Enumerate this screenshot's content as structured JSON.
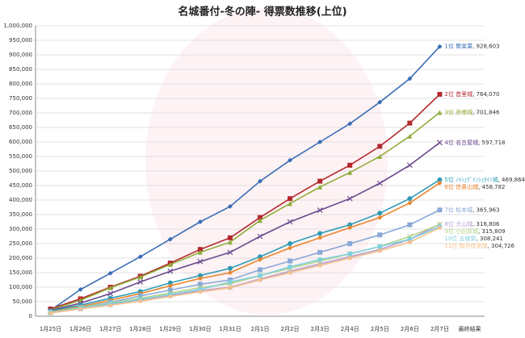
{
  "chart_data": {
    "type": "line",
    "title": "名城番付-冬の陣-  得票数推移(上位)",
    "categories": [
      "1月25日",
      "1月26日",
      "1月27日",
      "1月28日",
      "1月29日",
      "1月30日",
      "1月31日",
      "2月1日",
      "2月2日",
      "2月3日",
      "2月4日",
      "2月5日",
      "2月6日",
      "2月7日",
      "最終結果"
    ],
    "ylim": [
      0,
      1000000
    ],
    "yticks": [
      0,
      {
        "value": 50000,
        "label": "50,000"
      },
      {
        "value": 100000,
        "label": "100,000"
      },
      {
        "value": 150000,
        "label": "150,000"
      },
      {
        "value": 200000,
        "label": "200,000"
      },
      {
        "value": 250000,
        "label": "250,000"
      },
      {
        "value": 300000,
        "label": "300,000"
      },
      {
        "value": 350000,
        "label": "350,000"
      },
      {
        "value": 400000,
        "label": "400,000"
      },
      {
        "value": 450000,
        "label": "450,000"
      },
      {
        "value": 500000,
        "label": "500,000"
      },
      {
        "value": 550000,
        "label": "550,000"
      },
      {
        "value": 600000,
        "label": "600,000"
      },
      {
        "value": 650000,
        "label": "650,000"
      },
      {
        "value": 700000,
        "label": "700,000"
      },
      {
        "value": 750000,
        "label": "750,000"
      },
      {
        "value": 800000,
        "label": "800,000"
      },
      {
        "value": 850000,
        "label": "850,000"
      },
      {
        "value": 900000,
        "label": "900,000"
      },
      {
        "value": 950000,
        "label": "950,000"
      },
      {
        "value": 1000000,
        "label": "1,000,000"
      }
    ],
    "grid": true,
    "series": [
      {
        "name": "1位 聚楽第",
        "color": "#3a6eb5",
        "values": [
          20000,
          92000,
          148000,
          205000,
          265000,
          325000,
          378000,
          465000,
          537000,
          600000,
          663000,
          737000,
          818000,
          928603,
          null
        ],
        "value_labels": [
          null,
          null,
          null,
          null,
          null,
          null,
          null,
          null,
          null,
          null,
          null,
          null,
          null,
          "928,603",
          null
        ]
      },
      {
        "name": "2位 首里城",
        "color": "#b3282d",
        "values": [
          25000,
          60000,
          100000,
          138000,
          183000,
          230000,
          270000,
          340000,
          405000,
          465000,
          520000,
          585000,
          665000,
          764070,
          null
        ],
        "value_labels": [
          null,
          null,
          null,
          null,
          null,
          null,
          null,
          null,
          null,
          null,
          null,
          null,
          null,
          "764,070",
          null
        ]
      },
      {
        "name": "3位 彦根城",
        "color": "#8fae3a",
        "values": [
          22000,
          55000,
          98000,
          135000,
          178000,
          220000,
          255000,
          330000,
          388000,
          445000,
          495000,
          550000,
          620000,
          701846,
          null
        ],
        "value_labels": [
          null,
          null,
          null,
          null,
          null,
          null,
          null,
          null,
          null,
          null,
          null,
          null,
          null,
          "701,846",
          null
        ]
      },
      {
        "name": "4位 名古屋城",
        "color": "#6a4a8f",
        "values": [
          20000,
          45000,
          78000,
          118000,
          155000,
          188000,
          220000,
          275000,
          325000,
          365000,
          405000,
          458000,
          520000,
          597718,
          null
        ],
        "value_labels": [
          null,
          null,
          null,
          null,
          null,
          null,
          null,
          null,
          null,
          null,
          null,
          null,
          null,
          "597,718",
          null
        ]
      },
      {
        "name": "5位 ﾉｲｼｭｳﾞｧﾝｼｭﾀｲﾝ城",
        "color": "#2e9bb5",
        "values": [
          18000,
          38000,
          62000,
          85000,
          115000,
          140000,
          165000,
          205000,
          250000,
          285000,
          315000,
          355000,
          405000,
          469864,
          null
        ],
        "value_labels": [
          null,
          null,
          null,
          null,
          null,
          null,
          null,
          null,
          null,
          null,
          null,
          null,
          null,
          "469,864",
          null
        ]
      },
      {
        "name": "6位 信貴山城",
        "color": "#e8862e",
        "values": [
          15000,
          33000,
          55000,
          78000,
          105000,
          130000,
          150000,
          195000,
          235000,
          270000,
          305000,
          340000,
          390000,
          458782,
          null
        ],
        "value_labels": [
          null,
          null,
          null,
          null,
          null,
          null,
          null,
          null,
          null,
          null,
          null,
          null,
          null,
          "458,782",
          null
        ]
      },
      {
        "name": "7位 松本城",
        "color": "#8aa8d8",
        "values": [
          14000,
          30000,
          48000,
          70000,
          90000,
          110000,
          125000,
          160000,
          190000,
          220000,
          250000,
          280000,
          315000,
          365963,
          null
        ],
        "value_labels": [
          null,
          null,
          null,
          null,
          null,
          null,
          null,
          null,
          null,
          null,
          null,
          null,
          null,
          "365,963",
          null
        ]
      },
      {
        "name": "8位 犬山城",
        "color": "#b9a0d0",
        "values": [
          12000,
          26000,
          40000,
          56000,
          72000,
          88000,
          100000,
          128000,
          155000,
          180000,
          205000,
          230000,
          265000,
          316806,
          null
        ],
        "value_labels": [
          null,
          null,
          null,
          null,
          null,
          null,
          null,
          null,
          null,
          null,
          null,
          null,
          null,
          "316,806",
          null
        ]
      },
      {
        "name": "9位 小田原城",
        "color": "#b5d38a",
        "values": [
          13000,
          30000,
          45000,
          62000,
          80000,
          98000,
          112000,
          140000,
          165000,
          190000,
          215000,
          240000,
          275000,
          315809,
          null
        ],
        "value_labels": [
          null,
          null,
          null,
          null,
          null,
          null,
          null,
          null,
          null,
          null,
          null,
          null,
          null,
          "315,809",
          null
        ]
      },
      {
        "name": "10位 五稜郭",
        "color": "#7fd0e0",
        "values": [
          12000,
          28000,
          43000,
          58000,
          75000,
          92000,
          118000,
          140000,
          170000,
          195000,
          215000,
          240000,
          265000,
          308241,
          null
        ],
        "value_labels": [
          null,
          null,
          null,
          null,
          null,
          null,
          null,
          null,
          null,
          null,
          null,
          null,
          null,
          "308,241",
          null
        ]
      },
      {
        "name": "11位 指月伏見城",
        "color": "#f5c08a",
        "values": [
          11000,
          25000,
          38000,
          52000,
          68000,
          84000,
          98000,
          125000,
          150000,
          175000,
          200000,
          225000,
          255000,
          304726,
          null
        ],
        "value_labels": [
          null,
          null,
          null,
          null,
          null,
          null,
          null,
          null,
          null,
          null,
          null,
          null,
          null,
          "304,726",
          null
        ]
      }
    ]
  }
}
